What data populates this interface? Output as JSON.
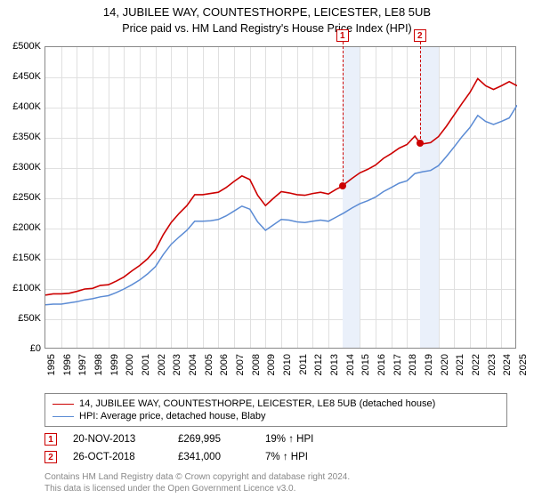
{
  "title": "14, JUBILEE WAY, COUNTESTHORPE, LEICESTER, LE8 5UB",
  "subtitle": "Price paid vs. HM Land Registry's House Price Index (HPI)",
  "chart": {
    "type": "line",
    "background_color": "#ffffff",
    "grid_color": "#e0e0e0",
    "border_color": "#888888",
    "x": {
      "min": 1995,
      "max": 2025,
      "tick_step": 1,
      "label_fontsize": 11
    },
    "y": {
      "min": 0,
      "max": 500000,
      "tick_step": 50000,
      "label_fontsize": 11,
      "prefix": "£",
      "suffix": "K",
      "divisor": 1000
    },
    "series": [
      {
        "name": "14, JUBILEE WAY, COUNTESTHORPE, LEICESTER, LE8 5UB (detached house)",
        "color": "#cc0000",
        "line_width": 1.6,
        "data": [
          [
            1995,
            90000
          ],
          [
            1995.5,
            92000
          ],
          [
            1996,
            92000
          ],
          [
            1996.5,
            93000
          ],
          [
            1997,
            96000
          ],
          [
            1997.5,
            100000
          ],
          [
            1998,
            101000
          ],
          [
            1998.5,
            106000
          ],
          [
            1999,
            107000
          ],
          [
            1999.5,
            113000
          ],
          [
            2000,
            120000
          ],
          [
            2000.5,
            130000
          ],
          [
            2001,
            139000
          ],
          [
            2001.5,
            150000
          ],
          [
            2002,
            165000
          ],
          [
            2002.5,
            190000
          ],
          [
            2003,
            210000
          ],
          [
            2003.5,
            225000
          ],
          [
            2004,
            238000
          ],
          [
            2004.5,
            256000
          ],
          [
            2005,
            256000
          ],
          [
            2005.5,
            258000
          ],
          [
            2006,
            260000
          ],
          [
            2006.5,
            268000
          ],
          [
            2007,
            278000
          ],
          [
            2007.5,
            287000
          ],
          [
            2008,
            281000
          ],
          [
            2008.5,
            255000
          ],
          [
            2009,
            238000
          ],
          [
            2009.5,
            250000
          ],
          [
            2010,
            261000
          ],
          [
            2010.5,
            259000
          ],
          [
            2011,
            256000
          ],
          [
            2011.5,
            255000
          ],
          [
            2012,
            258000
          ],
          [
            2012.5,
            260000
          ],
          [
            2013,
            257000
          ],
          [
            2013.5,
            265000
          ],
          [
            2013.89,
            269995
          ],
          [
            2014,
            273000
          ],
          [
            2014.5,
            283000
          ],
          [
            2015,
            292000
          ],
          [
            2015.5,
            298000
          ],
          [
            2016,
            305000
          ],
          [
            2016.5,
            316000
          ],
          [
            2017,
            324000
          ],
          [
            2017.5,
            333000
          ],
          [
            2018,
            339000
          ],
          [
            2018.5,
            353000
          ],
          [
            2018.82,
            341000
          ],
          [
            2019,
            340000
          ],
          [
            2019.5,
            342000
          ],
          [
            2020,
            352000
          ],
          [
            2020.5,
            369000
          ],
          [
            2021,
            388000
          ],
          [
            2021.5,
            407000
          ],
          [
            2022,
            425000
          ],
          [
            2022.5,
            448000
          ],
          [
            2023,
            436000
          ],
          [
            2023.5,
            430000
          ],
          [
            2024,
            436000
          ],
          [
            2024.5,
            443000
          ],
          [
            2025,
            436000
          ]
        ]
      },
      {
        "name": "HPI: Average price, detached house, Blaby",
        "color": "#5b8bd4",
        "line_width": 1.5,
        "data": [
          [
            1995,
            74000
          ],
          [
            1995.5,
            75000
          ],
          [
            1996,
            75000
          ],
          [
            1996.5,
            77000
          ],
          [
            1997,
            79000
          ],
          [
            1997.5,
            82000
          ],
          [
            1998,
            84000
          ],
          [
            1998.5,
            87000
          ],
          [
            1999,
            89000
          ],
          [
            1999.5,
            94000
          ],
          [
            2000,
            100000
          ],
          [
            2000.5,
            107000
          ],
          [
            2001,
            115000
          ],
          [
            2001.5,
            125000
          ],
          [
            2002,
            137000
          ],
          [
            2002.5,
            157000
          ],
          [
            2003,
            174000
          ],
          [
            2003.5,
            186000
          ],
          [
            2004,
            197000
          ],
          [
            2004.5,
            212000
          ],
          [
            2005,
            212000
          ],
          [
            2005.5,
            213000
          ],
          [
            2006,
            215000
          ],
          [
            2006.5,
            221000
          ],
          [
            2007,
            229000
          ],
          [
            2007.5,
            237000
          ],
          [
            2008,
            232000
          ],
          [
            2008.5,
            211000
          ],
          [
            2009,
            197000
          ],
          [
            2009.5,
            206000
          ],
          [
            2010,
            215000
          ],
          [
            2010.5,
            214000
          ],
          [
            2011,
            211000
          ],
          [
            2011.5,
            210000
          ],
          [
            2012,
            212000
          ],
          [
            2012.5,
            214000
          ],
          [
            2013,
            212000
          ],
          [
            2013.5,
            219000
          ],
          [
            2014,
            226000
          ],
          [
            2014.5,
            234000
          ],
          [
            2015,
            241000
          ],
          [
            2015.5,
            246000
          ],
          [
            2016,
            252000
          ],
          [
            2016.5,
            261000
          ],
          [
            2017,
            268000
          ],
          [
            2017.5,
            275000
          ],
          [
            2018,
            279000
          ],
          [
            2018.5,
            291000
          ],
          [
            2019,
            294000
          ],
          [
            2019.5,
            296000
          ],
          [
            2020,
            304000
          ],
          [
            2020.5,
            319000
          ],
          [
            2021,
            335000
          ],
          [
            2021.5,
            352000
          ],
          [
            2022,
            367000
          ],
          [
            2022.5,
            387000
          ],
          [
            2023,
            377000
          ],
          [
            2023.5,
            372000
          ],
          [
            2024,
            377000
          ],
          [
            2024.5,
            383000
          ],
          [
            2025,
            404000
          ]
        ]
      }
    ],
    "shaded_bands": [
      {
        "from": 2013.89,
        "to": 2015,
        "color": "#eaf0fa"
      },
      {
        "from": 2018.82,
        "to": 2020,
        "color": "#eaf0fa"
      }
    ],
    "markers": [
      {
        "label": "1",
        "x": 2013.89,
        "price": 269995,
        "dash_top": -6,
        "color": "#cc0000"
      },
      {
        "label": "2",
        "x": 2018.82,
        "price": 341000,
        "dash_top": -6,
        "color": "#cc0000"
      }
    ]
  },
  "legend": {
    "items": [
      {
        "color": "#cc0000",
        "text": "14, JUBILEE WAY, COUNTESTHORPE, LEICESTER, LE8 5UB (detached house)"
      },
      {
        "color": "#5b8bd4",
        "text": "HPI: Average price, detached house, Blaby"
      }
    ]
  },
  "sales": [
    {
      "label": "1",
      "date": "20-NOV-2013",
      "price": "£269,995",
      "ratio": "19% ↑ HPI"
    },
    {
      "label": "2",
      "date": "26-OCT-2018",
      "price": "£341,000",
      "ratio": "7% ↑ HPI"
    }
  ],
  "footnote_line1": "Contains HM Land Registry data © Crown copyright and database right 2024.",
  "footnote_line2": "This data is licensed under the Open Government Licence v3.0."
}
